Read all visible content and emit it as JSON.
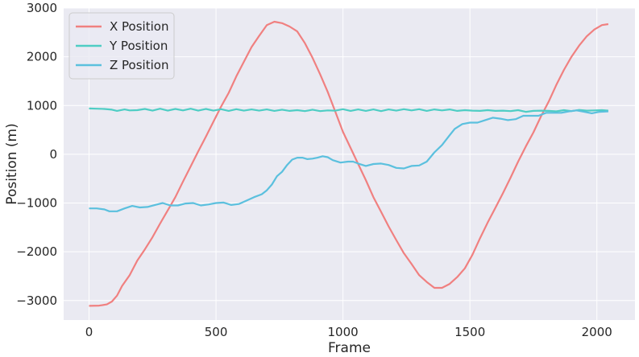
{
  "chart_data": {
    "type": "line",
    "title": "",
    "xlabel": "Frame",
    "ylabel": "Position (m)",
    "xlim": [
      -100,
      2150
    ],
    "ylim": [
      -3400,
      3000
    ],
    "x_ticks": [
      0,
      500,
      1000,
      1500,
      2000
    ],
    "x_tick_labels": [
      "0",
      "500",
      "1000",
      "1500",
      "2000"
    ],
    "y_ticks": [
      -3000,
      -2000,
      -1000,
      0,
      1000,
      2000,
      3000
    ],
    "y_tick_labels": [
      "−3000",
      "−2000",
      "−1000",
      "0",
      "1000",
      "2000",
      "3000"
    ],
    "grid": true,
    "legend_position": "top-left",
    "background": "#eaeaf2",
    "series": [
      {
        "name": "X Position",
        "color": "#f08080",
        "points": [
          [
            0,
            -3110
          ],
          [
            40,
            -3105
          ],
          [
            70,
            -3080
          ],
          [
            90,
            -3020
          ],
          [
            110,
            -2900
          ],
          [
            130,
            -2700
          ],
          [
            160,
            -2480
          ],
          [
            190,
            -2180
          ],
          [
            220,
            -1950
          ],
          [
            250,
            -1700
          ],
          [
            280,
            -1420
          ],
          [
            310,
            -1150
          ],
          [
            340,
            -880
          ],
          [
            370,
            -560
          ],
          [
            400,
            -250
          ],
          [
            430,
            60
          ],
          [
            460,
            360
          ],
          [
            490,
            670
          ],
          [
            520,
            980
          ],
          [
            550,
            1260
          ],
          [
            580,
            1600
          ],
          [
            610,
            1900
          ],
          [
            640,
            2200
          ],
          [
            670,
            2430
          ],
          [
            700,
            2650
          ],
          [
            730,
            2720
          ],
          [
            760,
            2690
          ],
          [
            790,
            2620
          ],
          [
            820,
            2520
          ],
          [
            850,
            2280
          ],
          [
            880,
            1980
          ],
          [
            910,
            1640
          ],
          [
            940,
            1280
          ],
          [
            970,
            870
          ],
          [
            1000,
            460
          ],
          [
            1030,
            130
          ],
          [
            1060,
            -200
          ],
          [
            1090,
            -530
          ],
          [
            1120,
            -880
          ],
          [
            1150,
            -1180
          ],
          [
            1180,
            -1480
          ],
          [
            1210,
            -1760
          ],
          [
            1240,
            -2030
          ],
          [
            1270,
            -2250
          ],
          [
            1300,
            -2480
          ],
          [
            1330,
            -2620
          ],
          [
            1360,
            -2740
          ],
          [
            1390,
            -2740
          ],
          [
            1420,
            -2660
          ],
          [
            1450,
            -2520
          ],
          [
            1480,
            -2340
          ],
          [
            1510,
            -2060
          ],
          [
            1540,
            -1720
          ],
          [
            1570,
            -1400
          ],
          [
            1600,
            -1100
          ],
          [
            1630,
            -800
          ],
          [
            1660,
            -480
          ],
          [
            1690,
            -150
          ],
          [
            1720,
            160
          ],
          [
            1750,
            450
          ],
          [
            1780,
            780
          ],
          [
            1810,
            1080
          ],
          [
            1840,
            1420
          ],
          [
            1870,
            1730
          ],
          [
            1900,
            2000
          ],
          [
            1930,
            2230
          ],
          [
            1960,
            2420
          ],
          [
            1990,
            2560
          ],
          [
            2020,
            2650
          ],
          [
            2045,
            2670
          ]
        ]
      },
      {
        "name": "Y Position",
        "color": "#4ecdc4",
        "points": [
          [
            0,
            940
          ],
          [
            30,
            935
          ],
          [
            60,
            930
          ],
          [
            90,
            915
          ],
          [
            110,
            890
          ],
          [
            140,
            920
          ],
          [
            160,
            900
          ],
          [
            190,
            905
          ],
          [
            220,
            930
          ],
          [
            250,
            895
          ],
          [
            280,
            935
          ],
          [
            310,
            895
          ],
          [
            340,
            930
          ],
          [
            370,
            900
          ],
          [
            400,
            935
          ],
          [
            430,
            895
          ],
          [
            460,
            930
          ],
          [
            490,
            895
          ],
          [
            520,
            925
          ],
          [
            550,
            890
          ],
          [
            580,
            925
          ],
          [
            610,
            895
          ],
          [
            640,
            920
          ],
          [
            670,
            895
          ],
          [
            700,
            920
          ],
          [
            730,
            890
          ],
          [
            760,
            915
          ],
          [
            790,
            890
          ],
          [
            820,
            905
          ],
          [
            850,
            885
          ],
          [
            880,
            915
          ],
          [
            910,
            885
          ],
          [
            940,
            900
          ],
          [
            970,
            895
          ],
          [
            1000,
            925
          ],
          [
            1030,
            890
          ],
          [
            1060,
            920
          ],
          [
            1090,
            890
          ],
          [
            1120,
            920
          ],
          [
            1150,
            885
          ],
          [
            1180,
            920
          ],
          [
            1210,
            895
          ],
          [
            1240,
            925
          ],
          [
            1270,
            900
          ],
          [
            1300,
            925
          ],
          [
            1330,
            890
          ],
          [
            1360,
            920
          ],
          [
            1390,
            900
          ],
          [
            1420,
            920
          ],
          [
            1450,
            890
          ],
          [
            1480,
            905
          ],
          [
            1510,
            895
          ],
          [
            1540,
            890
          ],
          [
            1570,
            905
          ],
          [
            1600,
            890
          ],
          [
            1630,
            895
          ],
          [
            1660,
            885
          ],
          [
            1690,
            905
          ],
          [
            1720,
            870
          ],
          [
            1750,
            890
          ],
          [
            1780,
            895
          ],
          [
            1810,
            890
          ],
          [
            1840,
            880
          ],
          [
            1870,
            905
          ],
          [
            1900,
            885
          ],
          [
            1930,
            910
          ],
          [
            1960,
            895
          ],
          [
            1990,
            900
          ],
          [
            2020,
            905
          ],
          [
            2045,
            895
          ]
        ]
      },
      {
        "name": "Z Position",
        "color": "#5bc0de",
        "points": [
          [
            0,
            -1110
          ],
          [
            30,
            -1110
          ],
          [
            60,
            -1130
          ],
          [
            80,
            -1170
          ],
          [
            110,
            -1170
          ],
          [
            140,
            -1110
          ],
          [
            170,
            -1060
          ],
          [
            200,
            -1090
          ],
          [
            230,
            -1080
          ],
          [
            260,
            -1040
          ],
          [
            290,
            -1000
          ],
          [
            320,
            -1050
          ],
          [
            350,
            -1050
          ],
          [
            380,
            -1010
          ],
          [
            410,
            -1000
          ],
          [
            440,
            -1050
          ],
          [
            470,
            -1030
          ],
          [
            500,
            -1000
          ],
          [
            530,
            -990
          ],
          [
            560,
            -1040
          ],
          [
            590,
            -1020
          ],
          [
            620,
            -950
          ],
          [
            650,
            -880
          ],
          [
            680,
            -820
          ],
          [
            700,
            -740
          ],
          [
            720,
            -620
          ],
          [
            740,
            -450
          ],
          [
            760,
            -360
          ],
          [
            780,
            -220
          ],
          [
            800,
            -110
          ],
          [
            820,
            -70
          ],
          [
            840,
            -70
          ],
          [
            860,
            -100
          ],
          [
            880,
            -90
          ],
          [
            900,
            -70
          ],
          [
            920,
            -40
          ],
          [
            940,
            -60
          ],
          [
            960,
            -120
          ],
          [
            990,
            -170
          ],
          [
            1020,
            -150
          ],
          [
            1040,
            -150
          ],
          [
            1060,
            -190
          ],
          [
            1090,
            -240
          ],
          [
            1120,
            -200
          ],
          [
            1150,
            -190
          ],
          [
            1180,
            -220
          ],
          [
            1210,
            -280
          ],
          [
            1240,
            -290
          ],
          [
            1270,
            -240
          ],
          [
            1300,
            -230
          ],
          [
            1330,
            -150
          ],
          [
            1360,
            40
          ],
          [
            1390,
            190
          ],
          [
            1420,
            390
          ],
          [
            1440,
            520
          ],
          [
            1470,
            620
          ],
          [
            1500,
            650
          ],
          [
            1530,
            650
          ],
          [
            1560,
            700
          ],
          [
            1590,
            750
          ],
          [
            1620,
            730
          ],
          [
            1650,
            700
          ],
          [
            1680,
            720
          ],
          [
            1710,
            790
          ],
          [
            1740,
            790
          ],
          [
            1770,
            790
          ],
          [
            1800,
            850
          ],
          [
            1830,
            850
          ],
          [
            1860,
            850
          ],
          [
            1890,
            880
          ],
          [
            1920,
            900
          ],
          [
            1950,
            870
          ],
          [
            1980,
            840
          ],
          [
            2010,
            870
          ],
          [
            2045,
            880
          ]
        ]
      }
    ]
  }
}
